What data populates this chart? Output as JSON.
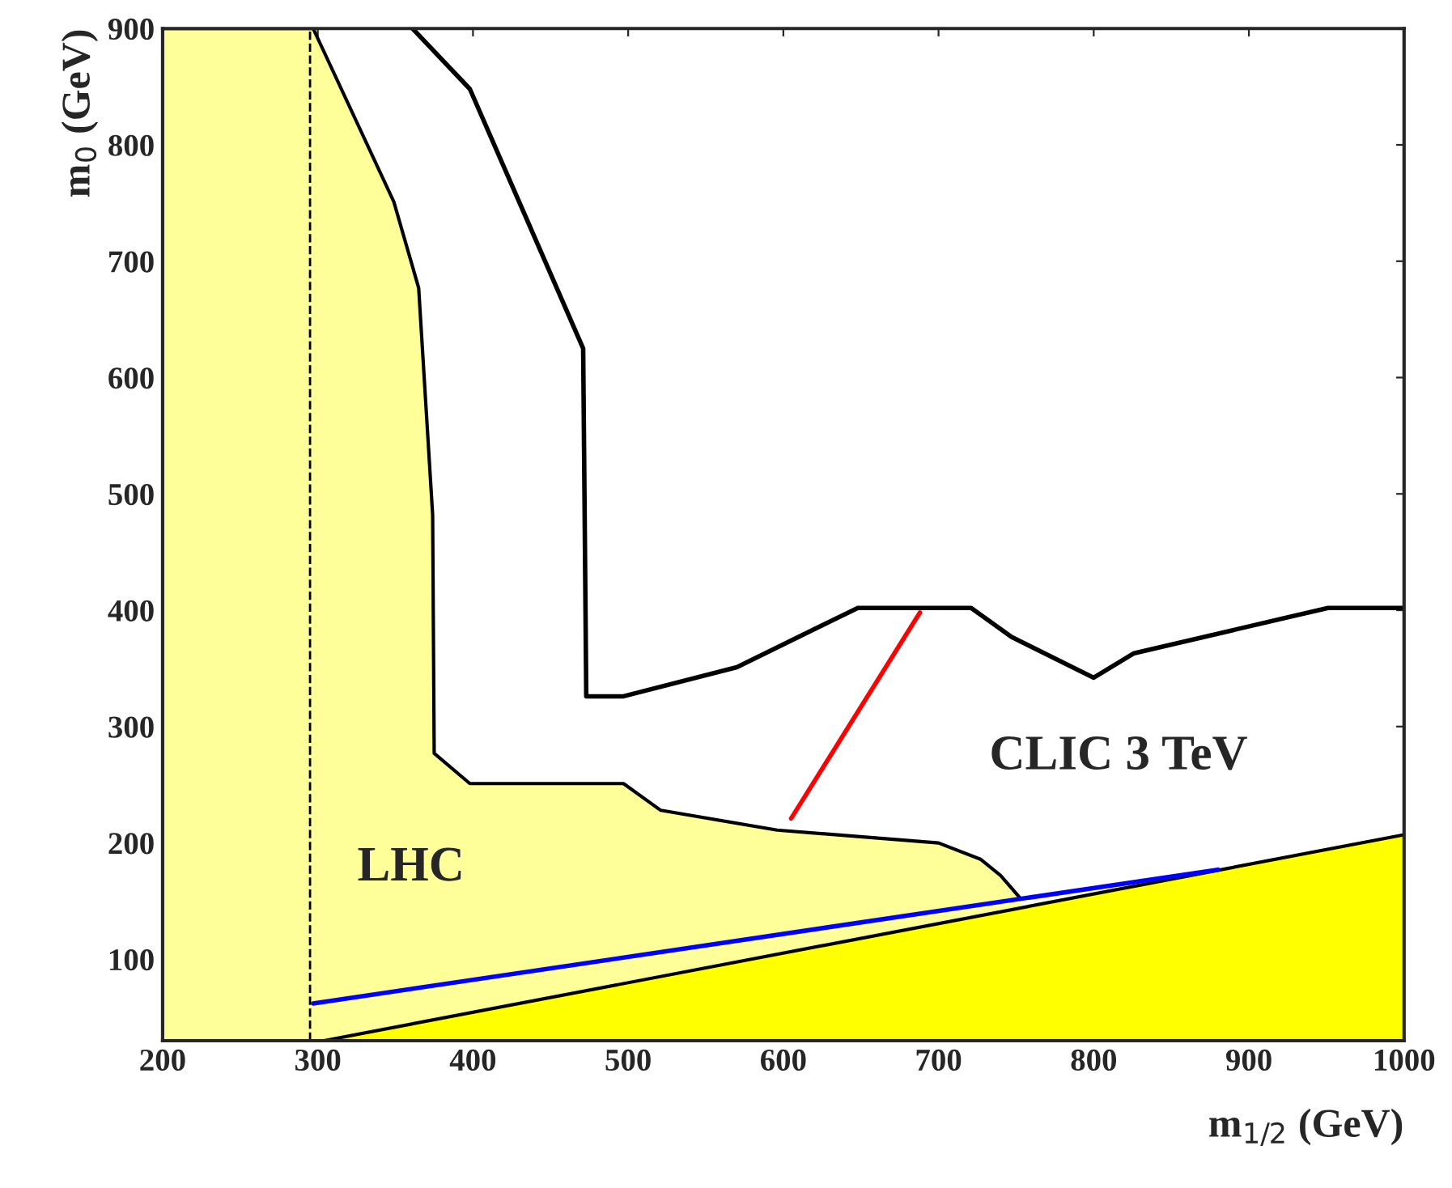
{
  "chart_data": {
    "type": "line",
    "xlabel": "m$_{1/2}$ (GeV)",
    "ylabel": "m$_{0}$ (GeV)",
    "xlim": [
      200,
      1000
    ],
    "ylim": [
      30,
      900
    ],
    "xticks": [
      200,
      300,
      400,
      500,
      600,
      700,
      800,
      900,
      1000
    ],
    "yticks": [
      100,
      200,
      300,
      400,
      500,
      600,
      700,
      800,
      900
    ],
    "grid": false,
    "legend": false,
    "series": [
      {
        "type": "area",
        "color": "#ffff99",
        "x": [
          200,
          297,
          349,
          365,
          374,
          375,
          398,
          497,
          521,
          596,
          700,
          727,
          740,
          753
        ],
        "values": [
          900,
          900,
          751,
          677,
          482,
          277,
          251,
          251,
          228,
          211,
          200,
          186,
          172,
          152
        ]
      },
      {
        "type": "area",
        "color": "#ffff00",
        "x": [
          304,
          1000
        ],
        "values": [
          30,
          207
        ]
      },
      {
        "color": "#000000",
        "x": [
          361,
          398,
          471,
          473,
          497,
          570,
          648,
          721,
          747,
          800,
          826,
          951,
          1000
        ],
        "values": [
          900,
          848,
          625,
          326,
          326,
          351,
          402,
          402,
          377,
          342,
          363,
          402,
          402
        ]
      },
      {
        "color": "#0000ff",
        "x": [
          297,
          880
        ],
        "values": [
          62,
          177
        ]
      },
      {
        "color": "#ff0000",
        "x": [
          605,
          688
        ],
        "values": [
          221,
          398
        ]
      }
    ],
    "ref_lines": [
      {
        "axis": "x",
        "value": 295,
        "color": "#000000",
        "line_style": "dashed"
      }
    ],
    "annotations": [
      "LHC",
      "CLIC 3 TeV"
    ]
  }
}
